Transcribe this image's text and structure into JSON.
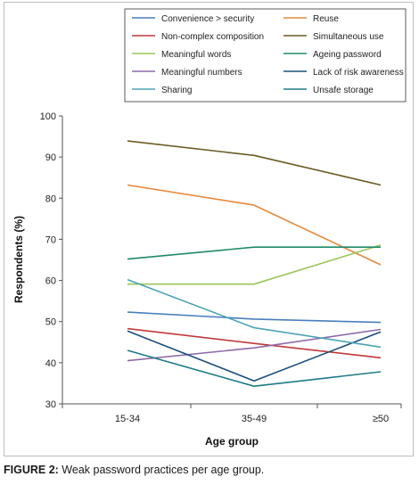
{
  "caption": {
    "label": "FIGURE 2:",
    "text": "Weak password practices per age group."
  },
  "chart_data": {
    "type": "line",
    "xlabel": "Age group",
    "ylabel": "Respondents (%)",
    "categories": [
      "15-34",
      "35-49",
      "≥50"
    ],
    "ylim": [
      30,
      100
    ],
    "yticks": [
      30,
      40,
      50,
      60,
      70,
      80,
      90,
      100
    ],
    "grid": false,
    "legend_position": "top",
    "series": [
      {
        "name": "Convenience > security",
        "color": "#4a7ebb",
        "values": [
          52.3,
          50.6,
          49.8
        ]
      },
      {
        "name": "Reuse",
        "color": "#e7883a",
        "values": [
          83.2,
          78.3,
          63.8
        ]
      },
      {
        "name": "Non-complex composition",
        "color": "#c0393b",
        "values": [
          48.3,
          44.7,
          41.2
        ]
      },
      {
        "name": "Simultaneous use",
        "color": "#6b5a23",
        "values": [
          93.9,
          90.4,
          83.2
        ]
      },
      {
        "name": "Meaningful words",
        "color": "#9bc55a",
        "values": [
          59.1,
          59.1,
          68.6
        ]
      },
      {
        "name": "Ageing password",
        "color": "#1f8a6a",
        "values": [
          65.2,
          68.1,
          68.1
        ]
      },
      {
        "name": "Meaningful numbers",
        "color": "#8e6aa8",
        "values": [
          40.5,
          43.6,
          48.1
        ]
      },
      {
        "name": "Lack of risk awareness",
        "color": "#1c4f7c",
        "values": [
          47.7,
          35.6,
          47.5
        ]
      },
      {
        "name": "Sharing",
        "color": "#4aa3b4",
        "values": [
          60.2,
          48.5,
          43.8
        ]
      },
      {
        "name": "Unsafe storage",
        "color": "#1d7a86",
        "values": [
          43.0,
          34.3,
          37.8
        ]
      }
    ]
  }
}
